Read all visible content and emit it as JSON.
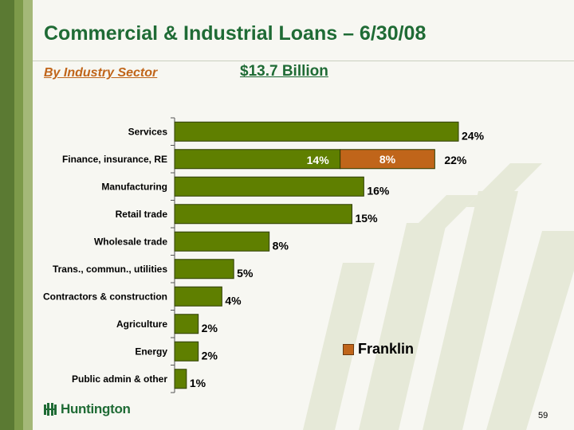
{
  "slide": {
    "title": "Commercial & Industrial Loans – 6/30/08",
    "subtitle": "By Industry Sector",
    "total": "$13.7 Billion",
    "page_number": "59",
    "logo_text": "Huntington"
  },
  "colors": {
    "bar": "#5f7f00",
    "franklin": "#c0651a",
    "title": "#1f6b35",
    "background": "#f7f7f2"
  },
  "chart_data": {
    "type": "bar",
    "orientation": "horizontal",
    "stacked": true,
    "title": "",
    "xlabel": "",
    "ylabel": "",
    "xlim": [
      0,
      24
    ],
    "legend_position": "lower-right",
    "grid": false,
    "categories": [
      "Services",
      "Finance, insurance, RE",
      "Manufacturing",
      "Retail trade",
      "Wholesale trade",
      "Trans., commun., utilities",
      "Contractors & construction",
      "Agriculture",
      "Energy",
      "Public admin & other"
    ],
    "series": [
      {
        "values": [
          24,
          14,
          16,
          15,
          8,
          5,
          4,
          2,
          2,
          1
        ]
      },
      {
        "name": "Franklin",
        "values": [
          0,
          8,
          0,
          0,
          0,
          0,
          0,
          0,
          0,
          0
        ]
      }
    ],
    "value_labels": [
      "24%",
      "22%",
      "16%",
      "15%",
      "8%",
      "5%",
      "4%",
      "2%",
      "2%",
      "1%"
    ],
    "segment_labels": [
      {
        "category": "Finance, insurance, RE",
        "main": "14%",
        "franklin": "8%"
      }
    ]
  }
}
